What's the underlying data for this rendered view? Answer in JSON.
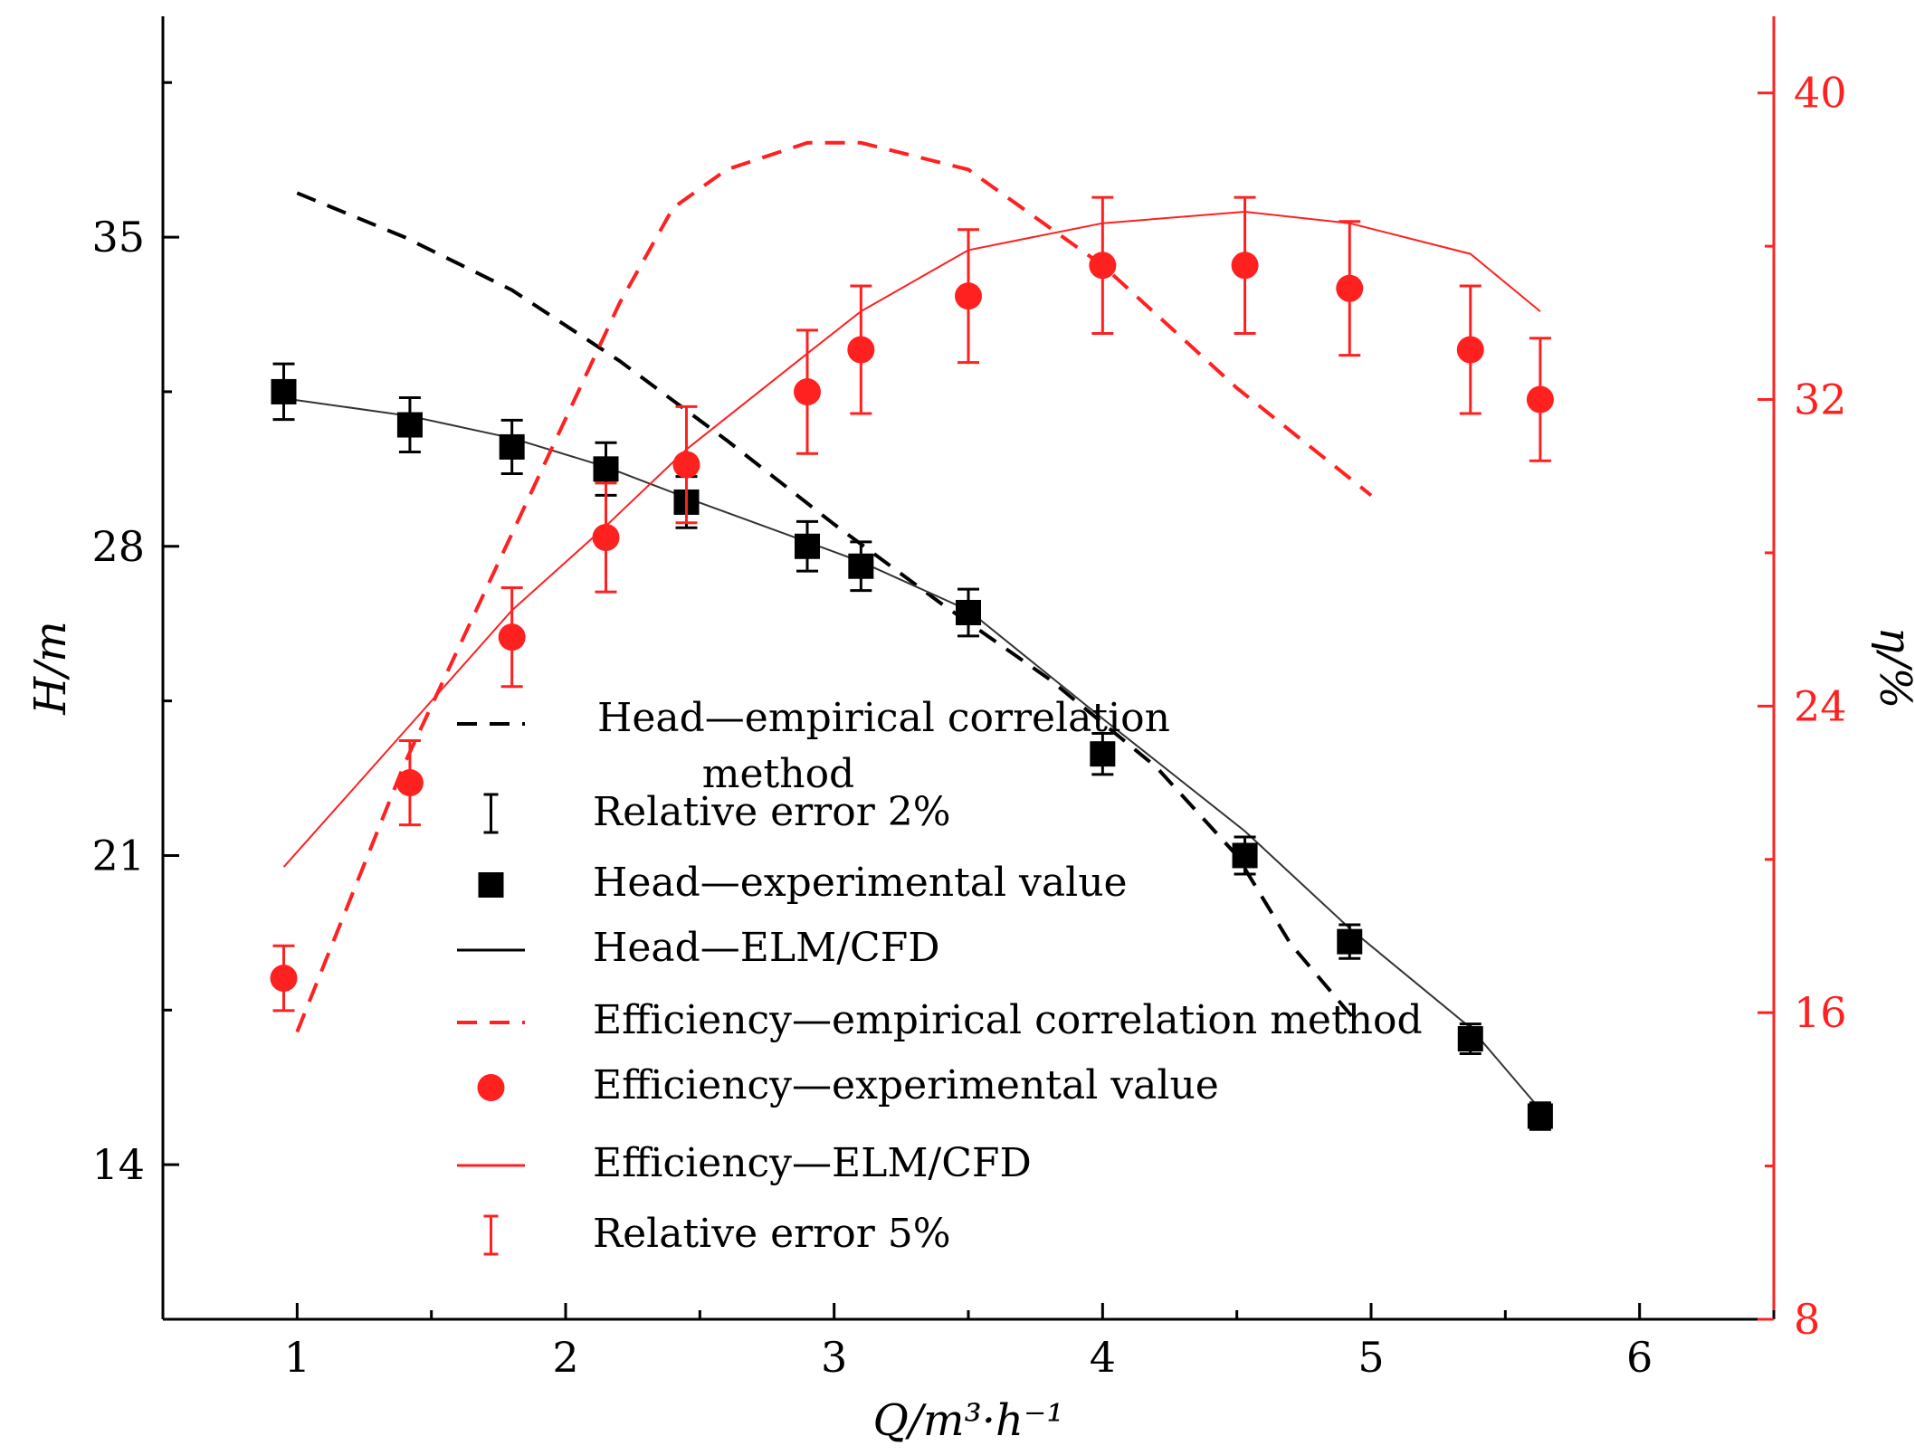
{
  "chart_data": {
    "type": "line",
    "title": "",
    "xlabel": "Q/m³·h⁻¹",
    "ylabel_left": "H/m",
    "ylabel_right": "η/%",
    "xlim": [
      0.5,
      6.5
    ],
    "ylim_left": [
      10.5,
      40
    ],
    "ylim_right": [
      8,
      42
    ],
    "x_ticks": [
      "1",
      "2",
      "3",
      "4",
      "5",
      "6"
    ],
    "y_left_ticks": [
      "14",
      "21",
      "28",
      "35"
    ],
    "y_right_ticks": [
      "8",
      "16",
      "24",
      "32",
      "40"
    ],
    "colors": {
      "head": "#000000",
      "efficiency": "#ff2020"
    },
    "series": [
      {
        "name": "Head—empirical correlation method",
        "axis": "left",
        "style": "dashed-black",
        "x": [
          1.0,
          1.4,
          1.8,
          2.2,
          2.6,
          3.0,
          3.4,
          3.8,
          4.2,
          4.5,
          4.7,
          4.95
        ],
        "values": [
          36.0,
          35.0,
          33.8,
          32.2,
          30.4,
          28.5,
          26.7,
          25.0,
          23.0,
          21.0,
          19.0,
          17.2
        ]
      },
      {
        "name": "Head—experimental value",
        "axis": "left",
        "style": "black-square",
        "error_pct": 2,
        "x": [
          0.95,
          1.42,
          1.8,
          2.15,
          2.45,
          2.9,
          3.1,
          3.5,
          4.0,
          4.53,
          4.92,
          5.37,
          5.63
        ],
        "values": [
          31.5,
          30.75,
          30.25,
          29.75,
          29.0,
          28.0,
          27.55,
          26.5,
          23.3,
          21.0,
          19.05,
          16.85,
          15.1
        ]
      },
      {
        "name": "Head—ELM/CFD",
        "axis": "left",
        "style": "solid-black",
        "x": [
          0.95,
          1.42,
          1.8,
          2.15,
          2.45,
          2.9,
          3.1,
          3.5,
          4.0,
          4.53,
          4.92,
          5.37,
          5.63
        ],
        "values": [
          31.35,
          30.95,
          30.45,
          29.8,
          29.1,
          28.1,
          27.65,
          26.55,
          24.1,
          21.55,
          19.35,
          17.1,
          15.25
        ]
      },
      {
        "name": "Efficiency—empirical correlation method",
        "axis": "right",
        "style": "dashed-red",
        "x": [
          1.0,
          1.2,
          1.4,
          1.6,
          1.8,
          2.0,
          2.2,
          2.4,
          2.6,
          2.9,
          3.1,
          3.5,
          4.0,
          4.5,
          5.0
        ],
        "values": [
          15.5,
          19.0,
          22.5,
          25.5,
          28.5,
          31.5,
          34.5,
          37.0,
          38.0,
          38.7,
          38.7,
          38.0,
          35.5,
          32.3,
          29.5
        ]
      },
      {
        "name": "Efficiency—experimental value",
        "axis": "right",
        "style": "red-circle",
        "error_pct": 5,
        "x": [
          0.95,
          1.42,
          1.8,
          2.15,
          2.45,
          2.9,
          3.1,
          3.5,
          4.0,
          4.53,
          4.92,
          5.37,
          5.63
        ],
        "values": [
          16.9,
          22.0,
          25.8,
          28.4,
          30.3,
          32.2,
          33.3,
          34.7,
          35.5,
          35.5,
          34.9,
          33.3,
          32.0
        ]
      },
      {
        "name": "Efficiency—ELM/CFD",
        "axis": "right",
        "style": "solid-red",
        "x": [
          0.95,
          1.42,
          1.8,
          2.15,
          2.45,
          2.9,
          3.1,
          3.5,
          4.0,
          4.53,
          4.92,
          5.37,
          5.63
        ],
        "values": [
          19.8,
          23.5,
          26.5,
          28.7,
          30.7,
          33.2,
          34.3,
          35.9,
          36.6,
          36.9,
          36.6,
          35.8,
          34.3
        ]
      }
    ],
    "legend": {
      "placement": "center",
      "entries": [
        {
          "style": "dashed-black",
          "label": "Head—empirical correlation",
          "label2": "method"
        },
        {
          "style": "error-black",
          "label": "Relative error 2%"
        },
        {
          "style": "black-square",
          "label": "Head—experimental value"
        },
        {
          "style": "solid-black",
          "label": "Head—ELM/CFD"
        },
        {
          "style": "dashed-red",
          "label": "Efficiency—empirical correlation method"
        },
        {
          "style": "red-circle",
          "label": "Efficiency—experimental value"
        },
        {
          "style": "solid-red",
          "label": "Efficiency—ELM/CFD"
        },
        {
          "style": "error-red",
          "label": "Relative error 5%"
        }
      ]
    }
  }
}
